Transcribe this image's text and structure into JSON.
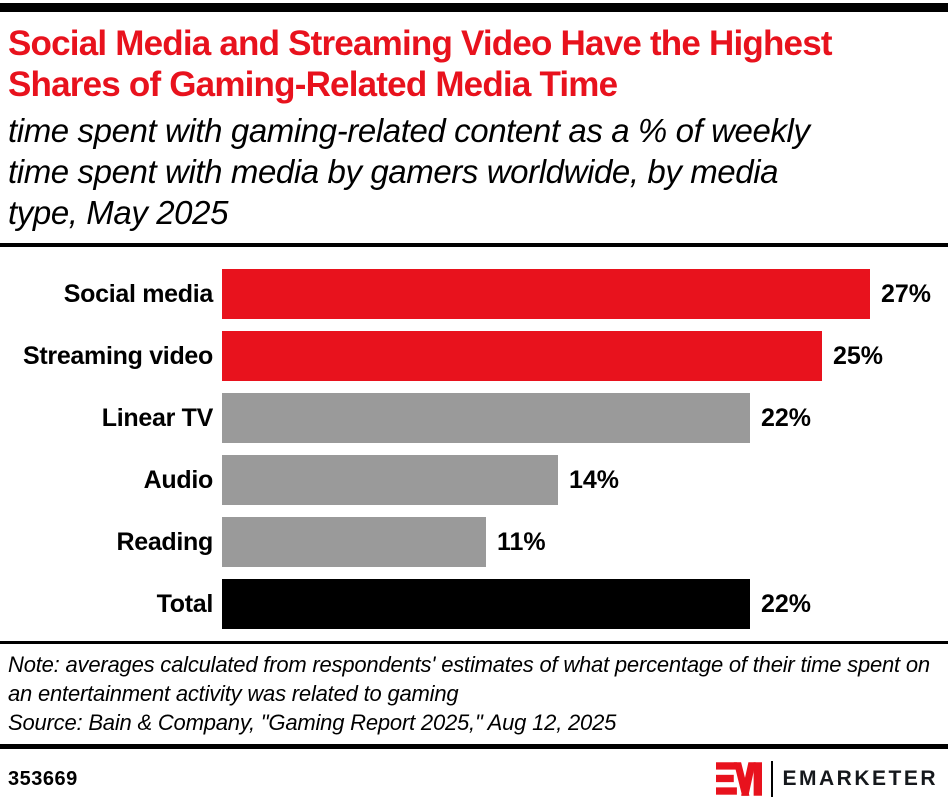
{
  "header": {
    "title": "Social Media and Streaming Video Have the Highest Shares of Gaming-Related Media Time",
    "subtitle": "time spent with gaming-related content as a % of weekly time spent with media by gamers worldwide, by media type, May 2025"
  },
  "chart_data": {
    "type": "bar",
    "orientation": "horizontal",
    "categories": [
      "Social media",
      "Streaming video",
      "Linear TV",
      "Audio",
      "Reading",
      "Total"
    ],
    "values": [
      27,
      25,
      22,
      14,
      11,
      22
    ],
    "value_labels": [
      "27%",
      "25%",
      "22%",
      "14%",
      "11%",
      "22%"
    ],
    "bar_colors": [
      "#E8121D",
      "#E8121D",
      "#9A9A9A",
      "#9A9A9A",
      "#9A9A9A",
      "#000000"
    ],
    "xlim": [
      0,
      28
    ],
    "grid": false,
    "legend": "none",
    "value_label_position": "end-of-bar",
    "title": "Social Media and Streaming Video Have the Highest Shares of Gaming-Related Media Time",
    "xlabel": "",
    "ylabel": ""
  },
  "notes": {
    "note": "Note: averages calculated from respondents' estimates of what percentage of their time spent on an entertainment activity was related to gaming",
    "source": "Source: Bain & Company, \"Gaming Report 2025,\" Aug 12, 2025"
  },
  "footer": {
    "chart_id": "353669",
    "brand": "EMARKETER",
    "logo_icon": "emarketer-em-mark"
  },
  "colors": {
    "accent_red": "#E8121D",
    "bar_gray": "#9A9A9A",
    "bar_black": "#000000",
    "rule_black": "#000000"
  }
}
